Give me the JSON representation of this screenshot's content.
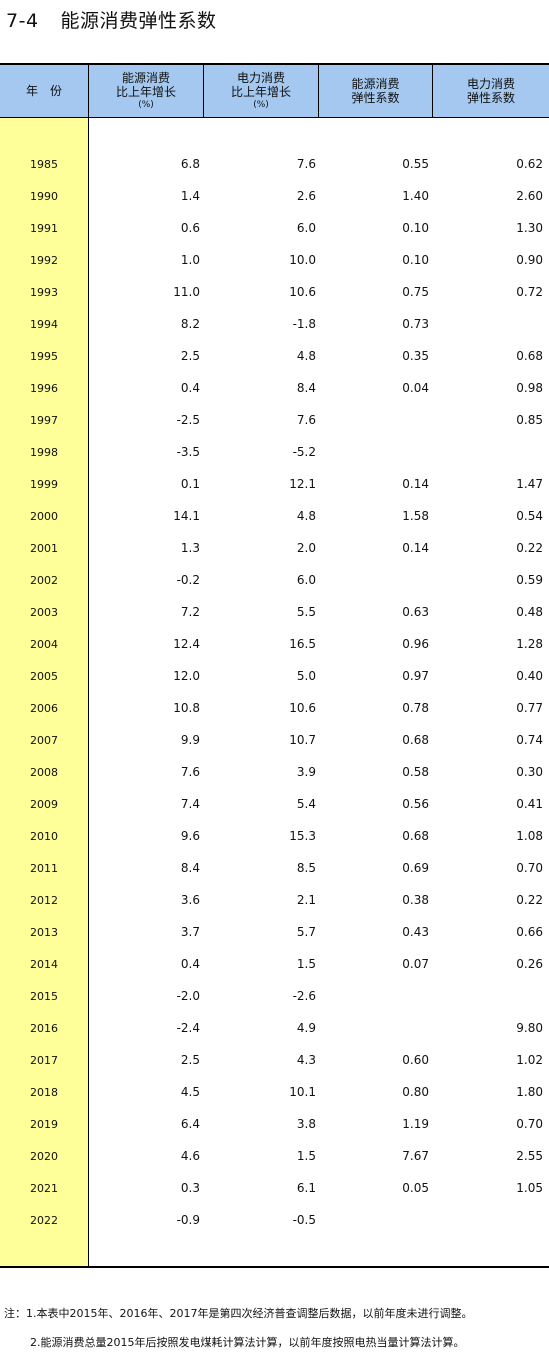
{
  "title": {
    "code": "7-4",
    "text": "能源消费弹性系数"
  },
  "headers": [
    {
      "line1": "年　份",
      "line2": "",
      "unit": ""
    },
    {
      "line1": "能源消费",
      "line2": "比上年增长",
      "unit": "(%)"
    },
    {
      "line1": "电力消费",
      "line2": "比上年增长",
      "unit": "(%)"
    },
    {
      "line1": "能源消费",
      "line2": "弹性系数",
      "unit": ""
    },
    {
      "line1": "电力消费",
      "line2": "弹性系数",
      "unit": ""
    }
  ],
  "rows": [
    {
      "year": "1985",
      "energy_growth": "6.8",
      "power_growth": "7.6",
      "energy_elasticity": "0.55",
      "power_elasticity": "0.62"
    },
    {
      "year": "1990",
      "energy_growth": "1.4",
      "power_growth": "2.6",
      "energy_elasticity": "1.40",
      "power_elasticity": "2.60"
    },
    {
      "year": "1991",
      "energy_growth": "0.6",
      "power_growth": "6.0",
      "energy_elasticity": "0.10",
      "power_elasticity": "1.30"
    },
    {
      "year": "1992",
      "energy_growth": "1.0",
      "power_growth": "10.0",
      "energy_elasticity": "0.10",
      "power_elasticity": "0.90"
    },
    {
      "year": "1993",
      "energy_growth": "11.0",
      "power_growth": "10.6",
      "energy_elasticity": "0.75",
      "power_elasticity": "0.72"
    },
    {
      "year": "1994",
      "energy_growth": "8.2",
      "power_growth": "-1.8",
      "energy_elasticity": "0.73",
      "power_elasticity": ""
    },
    {
      "year": "1995",
      "energy_growth": "2.5",
      "power_growth": "4.8",
      "energy_elasticity": "0.35",
      "power_elasticity": "0.68"
    },
    {
      "year": "1996",
      "energy_growth": "0.4",
      "power_growth": "8.4",
      "energy_elasticity": "0.04",
      "power_elasticity": "0.98"
    },
    {
      "year": "1997",
      "energy_growth": "-2.5",
      "power_growth": "7.6",
      "energy_elasticity": "",
      "power_elasticity": "0.85"
    },
    {
      "year": "1998",
      "energy_growth": "-3.5",
      "power_growth": "-5.2",
      "energy_elasticity": "",
      "power_elasticity": ""
    },
    {
      "year": "1999",
      "energy_growth": "0.1",
      "power_growth": "12.1",
      "energy_elasticity": "0.14",
      "power_elasticity": "1.47"
    },
    {
      "year": "2000",
      "energy_growth": "14.1",
      "power_growth": "4.8",
      "energy_elasticity": "1.58",
      "power_elasticity": "0.54"
    },
    {
      "year": "2001",
      "energy_growth": "1.3",
      "power_growth": "2.0",
      "energy_elasticity": "0.14",
      "power_elasticity": "0.22"
    },
    {
      "year": "2002",
      "energy_growth": "-0.2",
      "power_growth": "6.0",
      "energy_elasticity": "",
      "power_elasticity": "0.59"
    },
    {
      "year": "2003",
      "energy_growth": "7.2",
      "power_growth": "5.5",
      "energy_elasticity": "0.63",
      "power_elasticity": "0.48"
    },
    {
      "year": "2004",
      "energy_growth": "12.4",
      "power_growth": "16.5",
      "energy_elasticity": "0.96",
      "power_elasticity": "1.28"
    },
    {
      "year": "2005",
      "energy_growth": "12.0",
      "power_growth": "5.0",
      "energy_elasticity": "0.97",
      "power_elasticity": "0.40"
    },
    {
      "year": "2006",
      "energy_growth": "10.8",
      "power_growth": "10.6",
      "energy_elasticity": "0.78",
      "power_elasticity": "0.77"
    },
    {
      "year": "2007",
      "energy_growth": "9.9",
      "power_growth": "10.7",
      "energy_elasticity": "0.68",
      "power_elasticity": "0.74"
    },
    {
      "year": "2008",
      "energy_growth": "7.6",
      "power_growth": "3.9",
      "energy_elasticity": "0.58",
      "power_elasticity": "0.30"
    },
    {
      "year": "2009",
      "energy_growth": "7.4",
      "power_growth": "5.4",
      "energy_elasticity": "0.56",
      "power_elasticity": "0.41"
    },
    {
      "year": "2010",
      "energy_growth": "9.6",
      "power_growth": "15.3",
      "energy_elasticity": "0.68",
      "power_elasticity": "1.08"
    },
    {
      "year": "2011",
      "energy_growth": "8.4",
      "power_growth": "8.5",
      "energy_elasticity": "0.69",
      "power_elasticity": "0.70"
    },
    {
      "year": "2012",
      "energy_growth": "3.6",
      "power_growth": "2.1",
      "energy_elasticity": "0.38",
      "power_elasticity": "0.22"
    },
    {
      "year": "2013",
      "energy_growth": "3.7",
      "power_growth": "5.7",
      "energy_elasticity": "0.43",
      "power_elasticity": "0.66"
    },
    {
      "year": "2014",
      "energy_growth": "0.4",
      "power_growth": "1.5",
      "energy_elasticity": "0.07",
      "power_elasticity": "0.26"
    },
    {
      "year": "2015",
      "energy_growth": "-2.0",
      "power_growth": "-2.6",
      "energy_elasticity": "",
      "power_elasticity": ""
    },
    {
      "year": "2016",
      "energy_growth": "-2.4",
      "power_growth": "4.9",
      "energy_elasticity": "",
      "power_elasticity": "9.80"
    },
    {
      "year": "2017",
      "energy_growth": "2.5",
      "power_growth": "4.3",
      "energy_elasticity": "0.60",
      "power_elasticity": "1.02"
    },
    {
      "year": "2018",
      "energy_growth": "4.5",
      "power_growth": "10.1",
      "energy_elasticity": "0.80",
      "power_elasticity": "1.80"
    },
    {
      "year": "2019",
      "energy_growth": "6.4",
      "power_growth": "3.8",
      "energy_elasticity": "1.19",
      "power_elasticity": "0.70"
    },
    {
      "year": "2020",
      "energy_growth": "4.6",
      "power_growth": "1.5",
      "energy_elasticity": "7.67",
      "power_elasticity": "2.55"
    },
    {
      "year": "2021",
      "energy_growth": "0.3",
      "power_growth": "6.1",
      "energy_elasticity": "0.05",
      "power_elasticity": "1.05"
    },
    {
      "year": "2022",
      "energy_growth": "-0.9",
      "power_growth": "-0.5",
      "energy_elasticity": "",
      "power_elasticity": ""
    }
  ],
  "notes": [
    "注：1.本表中2015年、2016年、2017年是第四次经济普查调整后数据，以前年度未进行调整。",
    "2.能源消费总量2015年后按照发电煤耗计算法计算，以前年度按照电热当量计算法计算。"
  ]
}
